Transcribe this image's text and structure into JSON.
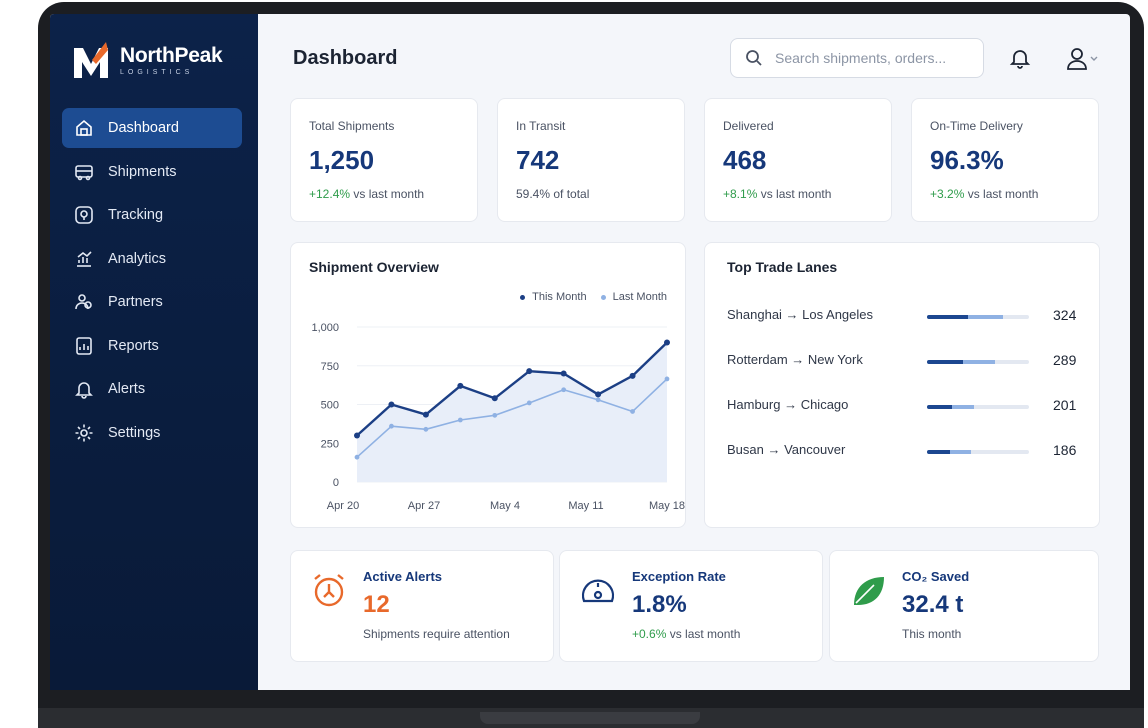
{
  "brand": {
    "name": "NorthPeak",
    "subtitle": "LOGISTICS"
  },
  "sidebar": {
    "items": [
      {
        "label": "Dashboard",
        "icon": "dashboard-icon",
        "active": true
      },
      {
        "label": "Shipments",
        "icon": "truck-icon"
      },
      {
        "label": "Tracking",
        "icon": "tracking-icon"
      },
      {
        "label": "Analytics",
        "icon": "analytics-icon"
      },
      {
        "label": "Partners",
        "icon": "partners-icon"
      },
      {
        "label": "Reports",
        "icon": "reports-icon"
      },
      {
        "label": "Alerts",
        "icon": "bell-icon"
      },
      {
        "label": "Settings",
        "icon": "gear-icon"
      }
    ]
  },
  "header": {
    "title": "Dashboard",
    "search_placeholder": "Search shipments, orders..."
  },
  "stats": [
    {
      "label": "Total Shipments",
      "value": "1,250",
      "change": "+12.4%",
      "suffix": "vs last month"
    },
    {
      "label": "In Transit",
      "value": "742",
      "change": "",
      "suffix": "59.4% of total"
    },
    {
      "label": "Delivered",
      "value": "468",
      "change": "+8.1%",
      "suffix": "vs last month"
    },
    {
      "label": "On-Time Delivery",
      "value": "96.3%",
      "change": "+3.2%",
      "suffix": "vs last month"
    }
  ],
  "overview": {
    "title": "Shipment Overview",
    "legend_this": "This Month",
    "legend_last": "Last Month"
  },
  "chart_data": {
    "type": "line",
    "title": "Shipment Overview",
    "x_ticks": [
      "Apr 20",
      "Apr 27",
      "May 4",
      "May 11",
      "May 18"
    ],
    "y_ticks": [
      "1,000",
      "750",
      "500",
      "250",
      "0"
    ],
    "ylim": [
      0,
      1000
    ],
    "grid": true,
    "legend": "top-right",
    "x": [
      0,
      1,
      2,
      3,
      4,
      5,
      6,
      7,
      8,
      9
    ],
    "series": [
      {
        "name": "This Month",
        "color": "#1c3f85",
        "values": [
          300,
          500,
          435,
          620,
          540,
          715,
          700,
          565,
          685,
          900
        ]
      },
      {
        "name": "Last Month",
        "color": "#8fb1e3",
        "values": [
          160,
          360,
          340,
          400,
          430,
          510,
          595,
          530,
          455,
          665
        ]
      }
    ]
  },
  "lanes": {
    "title": "Top Trade Lanes",
    "items": [
      {
        "route": "Shanghai → Los Angeles",
        "count": "324",
        "value": 324
      },
      {
        "route": "Rotterdam → New York",
        "count": "289",
        "value": 289
      },
      {
        "route": "Hamburg → Chicago",
        "count": "201",
        "value": 201
      },
      {
        "route": "Busan → Vancouver",
        "count": "186",
        "value": 186
      }
    ]
  },
  "bottom": [
    {
      "title": "Active Alerts",
      "value": "12",
      "change": "",
      "suffix": "Shipments require attention",
      "icon": "alarm-clock-icon",
      "color": "#e8692b"
    },
    {
      "title": "Exception Rate",
      "value": "1.8%",
      "change": "+0.6%",
      "suffix": "vs last month",
      "icon": "gauge-icon",
      "color": "#16387a"
    },
    {
      "title": "CO₂ Saved",
      "value": "32.4 t",
      "change": "",
      "suffix": "This month",
      "icon": "leaf-icon",
      "color": "#2f9c4b"
    }
  ]
}
